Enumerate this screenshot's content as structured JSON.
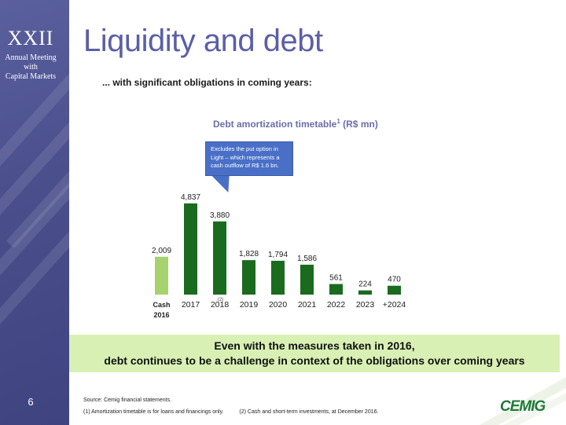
{
  "sidebar": {
    "brand": "XXII",
    "brand_sub": [
      "Annual Meeting",
      "with",
      "Capital Markets"
    ],
    "page_number": "6"
  },
  "header": {
    "title": "Liquidity and debt",
    "subtitle": "... with significant obligations in coming years:"
  },
  "chart_title": {
    "text": "Debt amortization timetable",
    "sup": "1",
    "suffix": " (R$ mn)"
  },
  "callout": "Excludes the put option in Light – which represents a cash outflow of R$ 1.6 bn.",
  "chart_data": {
    "type": "bar",
    "title": "Debt amortization timetable¹ (R$ mn)",
    "categories": [
      "Cash 2016",
      "2017",
      "2018",
      "2019",
      "2020",
      "2021",
      "2022",
      "2023",
      "+2024"
    ],
    "category_lines": [
      [
        "Cash",
        "2016"
      ],
      [
        "2017"
      ],
      [
        "2018"
      ],
      [
        "2019"
      ],
      [
        "2020"
      ],
      [
        "2021"
      ],
      [
        "2022"
      ],
      [
        "2023"
      ],
      [
        "+2024"
      ]
    ],
    "values": [
      2009,
      4837,
      3880,
      1828,
      1794,
      1586,
      561,
      224,
      470
    ],
    "value_labels": [
      "2,009",
      "4,837",
      "3,880",
      "1,828",
      "1,794",
      "1,586",
      "561",
      "224",
      "470"
    ],
    "footnote_marker": "(2)",
    "bar_colors": [
      "#a6d36d",
      "#1b6b1f",
      "#1b6b1f",
      "#1b6b1f",
      "#1b6b1f",
      "#1b6b1f",
      "#1b6b1f",
      "#1b6b1f",
      "#1b6b1f"
    ],
    "ylim": [
      0,
      5000
    ],
    "grid": false,
    "legend": "none"
  },
  "banner": {
    "line1": "Even with the measures taken in 2016,",
    "line2": "debt continues to be a challenge in context of the obligations over coming years"
  },
  "footer": {
    "source": "Source: Cemig financial statements.",
    "note1": "(1) Amortization timetable is for loans and financings only.",
    "note2": "(2) Cash and short-term investments, at December 2016.",
    "logo": "CEMIG"
  },
  "colors": {
    "sidebar": "#4f5494",
    "title": "#5b5fa6",
    "chart_title": "#6a6ea8",
    "bar_dark": "#1b6b1f",
    "bar_light": "#a6d36d",
    "banner": "#d9f0b4",
    "callout": "#4a6fc7",
    "logo": "#1f7a3a"
  }
}
